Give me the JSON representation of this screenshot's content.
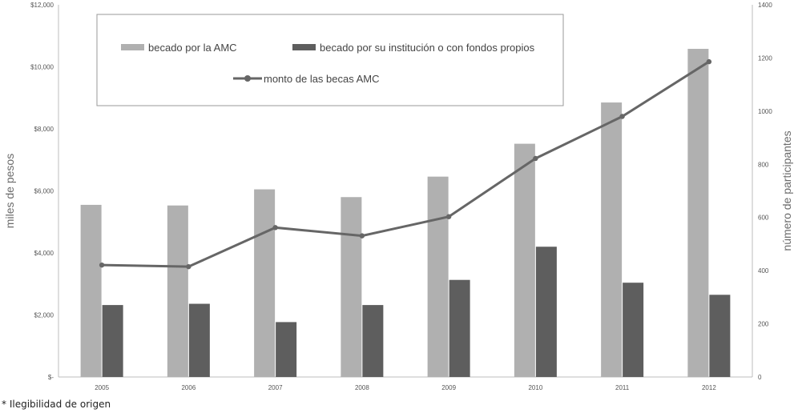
{
  "chart_data": {
    "type": "bar",
    "categories": [
      "2005",
      "2006",
      "2007",
      "2008",
      "2009",
      "2010",
      "2011",
      "2012"
    ],
    "series": [
      {
        "name": "becado por la AMC",
        "kind": "bar",
        "axis": "left",
        "color": "#b0b0b0",
        "values": [
          5550,
          5530,
          6050,
          5800,
          6460,
          7520,
          8850,
          10580
        ]
      },
      {
        "name": "becado por su institución o con fondos propios",
        "kind": "bar",
        "axis": "left",
        "color": "#5e5e5e",
        "values": [
          2320,
          2360,
          1770,
          2320,
          3130,
          4200,
          3040,
          2650
        ]
      },
      {
        "name": "monto de las becas AMC",
        "kind": "line",
        "axis": "right",
        "color": "#666666",
        "values": [
          421,
          415,
          562,
          531,
          603,
          822,
          980,
          1186
        ]
      }
    ],
    "ylabel": "miles de pesos",
    "y2label": "número de participantes",
    "ylim": [
      0,
      12000
    ],
    "y2lim": [
      0,
      1400
    ],
    "yticks": [
      "$-",
      "$2,000",
      "$4,000",
      "$6,000",
      "$8,000",
      "$10,000",
      "$12,000"
    ],
    "y2ticks": [
      "0",
      "200",
      "400",
      "600",
      "800",
      "1000",
      "1200",
      "1400"
    ],
    "grid": false,
    "legend_position": "top-left"
  },
  "footnote": "* Ilegibilidad de origen"
}
